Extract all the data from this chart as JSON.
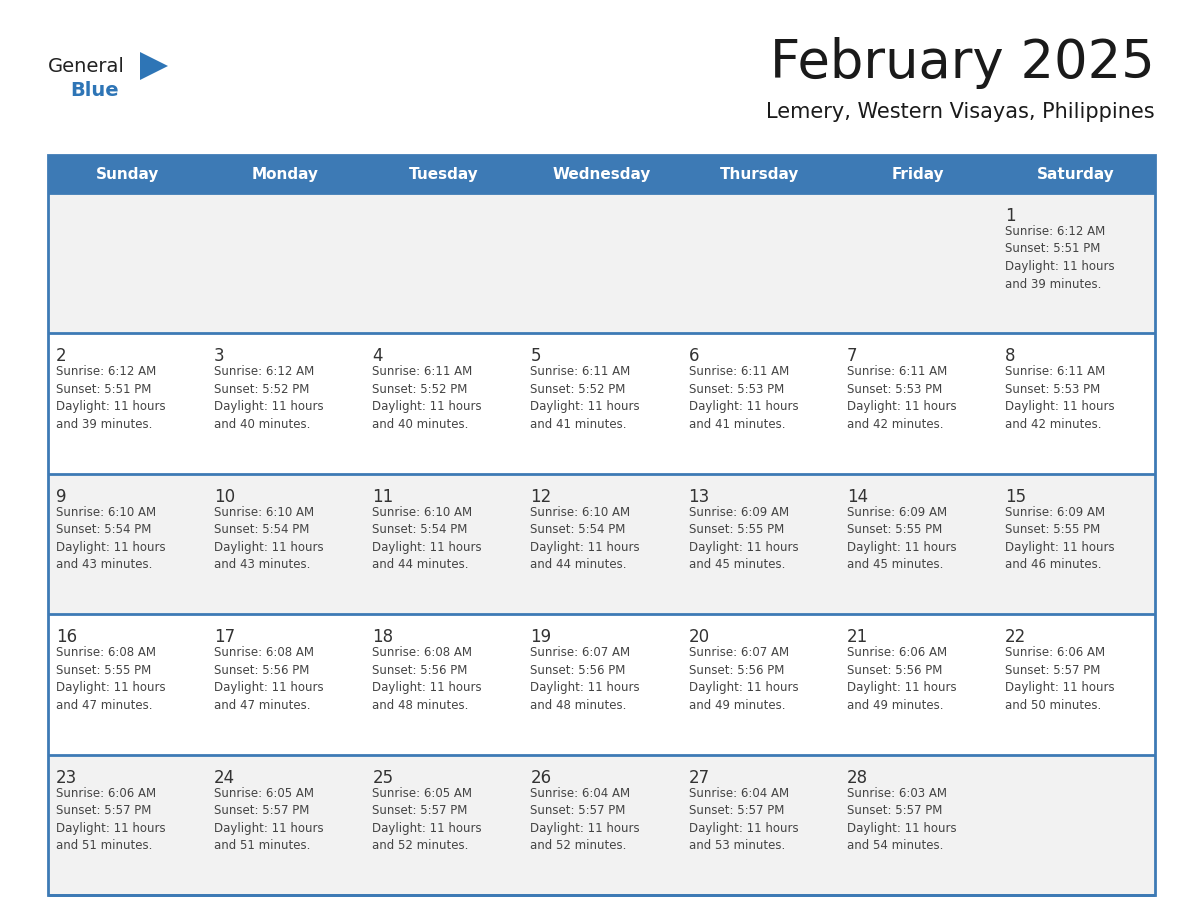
{
  "title": "February 2025",
  "subtitle": "Lemery, Western Visayas, Philippines",
  "days_of_week": [
    "Sunday",
    "Monday",
    "Tuesday",
    "Wednesday",
    "Thursday",
    "Friday",
    "Saturday"
  ],
  "header_bg": "#3D7AB5",
  "header_text": "#FFFFFF",
  "row_bg_light": "#F2F2F2",
  "row_bg_white": "#FFFFFF",
  "border_color": "#3D7AB5",
  "day_num_color": "#333333",
  "text_color": "#444444",
  "title_color": "#1a1a1a",
  "subtitle_color": "#1a1a1a",
  "logo_general_color": "#222222",
  "logo_blue_color": "#2E75B6",
  "logo_triangle_color": "#2E75B6",
  "calendar": [
    [
      null,
      null,
      null,
      null,
      null,
      null,
      {
        "day": 1,
        "sunrise": "6:12 AM",
        "sunset": "5:51 PM",
        "daylight": "11 hours and 39 minutes."
      }
    ],
    [
      {
        "day": 2,
        "sunrise": "6:12 AM",
        "sunset": "5:51 PM",
        "daylight": "11 hours and 39 minutes."
      },
      {
        "day": 3,
        "sunrise": "6:12 AM",
        "sunset": "5:52 PM",
        "daylight": "11 hours and 40 minutes."
      },
      {
        "day": 4,
        "sunrise": "6:11 AM",
        "sunset": "5:52 PM",
        "daylight": "11 hours and 40 minutes."
      },
      {
        "day": 5,
        "sunrise": "6:11 AM",
        "sunset": "5:52 PM",
        "daylight": "11 hours and 41 minutes."
      },
      {
        "day": 6,
        "sunrise": "6:11 AM",
        "sunset": "5:53 PM",
        "daylight": "11 hours and 41 minutes."
      },
      {
        "day": 7,
        "sunrise": "6:11 AM",
        "sunset": "5:53 PM",
        "daylight": "11 hours and 42 minutes."
      },
      {
        "day": 8,
        "sunrise": "6:11 AM",
        "sunset": "5:53 PM",
        "daylight": "11 hours and 42 minutes."
      }
    ],
    [
      {
        "day": 9,
        "sunrise": "6:10 AM",
        "sunset": "5:54 PM",
        "daylight": "11 hours and 43 minutes."
      },
      {
        "day": 10,
        "sunrise": "6:10 AM",
        "sunset": "5:54 PM",
        "daylight": "11 hours and 43 minutes."
      },
      {
        "day": 11,
        "sunrise": "6:10 AM",
        "sunset": "5:54 PM",
        "daylight": "11 hours and 44 minutes."
      },
      {
        "day": 12,
        "sunrise": "6:10 AM",
        "sunset": "5:54 PM",
        "daylight": "11 hours and 44 minutes."
      },
      {
        "day": 13,
        "sunrise": "6:09 AM",
        "sunset": "5:55 PM",
        "daylight": "11 hours and 45 minutes."
      },
      {
        "day": 14,
        "sunrise": "6:09 AM",
        "sunset": "5:55 PM",
        "daylight": "11 hours and 45 minutes."
      },
      {
        "day": 15,
        "sunrise": "6:09 AM",
        "sunset": "5:55 PM",
        "daylight": "11 hours and 46 minutes."
      }
    ],
    [
      {
        "day": 16,
        "sunrise": "6:08 AM",
        "sunset": "5:55 PM",
        "daylight": "11 hours and 47 minutes."
      },
      {
        "day": 17,
        "sunrise": "6:08 AM",
        "sunset": "5:56 PM",
        "daylight": "11 hours and 47 minutes."
      },
      {
        "day": 18,
        "sunrise": "6:08 AM",
        "sunset": "5:56 PM",
        "daylight": "11 hours and 48 minutes."
      },
      {
        "day": 19,
        "sunrise": "6:07 AM",
        "sunset": "5:56 PM",
        "daylight": "11 hours and 48 minutes."
      },
      {
        "day": 20,
        "sunrise": "6:07 AM",
        "sunset": "5:56 PM",
        "daylight": "11 hours and 49 minutes."
      },
      {
        "day": 21,
        "sunrise": "6:06 AM",
        "sunset": "5:56 PM",
        "daylight": "11 hours and 49 minutes."
      },
      {
        "day": 22,
        "sunrise": "6:06 AM",
        "sunset": "5:57 PM",
        "daylight": "11 hours and 50 minutes."
      }
    ],
    [
      {
        "day": 23,
        "sunrise": "6:06 AM",
        "sunset": "5:57 PM",
        "daylight": "11 hours and 51 minutes."
      },
      {
        "day": 24,
        "sunrise": "6:05 AM",
        "sunset": "5:57 PM",
        "daylight": "11 hours and 51 minutes."
      },
      {
        "day": 25,
        "sunrise": "6:05 AM",
        "sunset": "5:57 PM",
        "daylight": "11 hours and 52 minutes."
      },
      {
        "day": 26,
        "sunrise": "6:04 AM",
        "sunset": "5:57 PM",
        "daylight": "11 hours and 52 minutes."
      },
      {
        "day": 27,
        "sunrise": "6:04 AM",
        "sunset": "5:57 PM",
        "daylight": "11 hours and 53 minutes."
      },
      {
        "day": 28,
        "sunrise": "6:03 AM",
        "sunset": "5:57 PM",
        "daylight": "11 hours and 54 minutes."
      },
      null
    ]
  ]
}
